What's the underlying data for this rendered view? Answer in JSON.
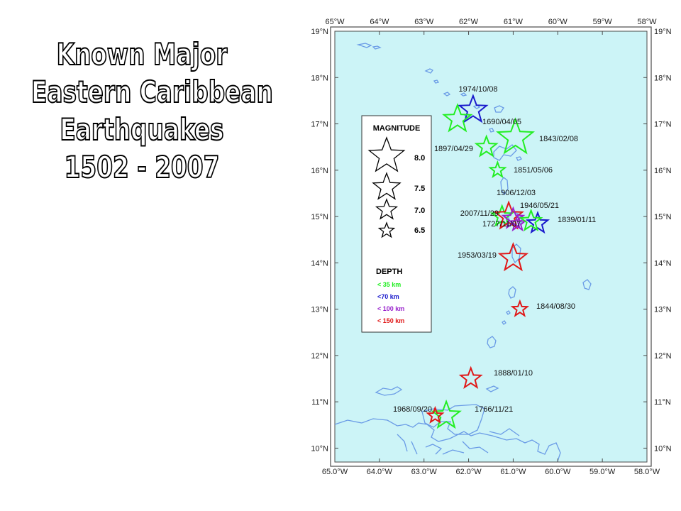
{
  "title": {
    "lines": [
      "Known Major",
      "Eastern Caribbean",
      "Earthquakes",
      "1502 - 2007"
    ]
  },
  "map": {
    "lon_range": [
      -65.0,
      -58.0
    ],
    "lat_range": [
      9.7,
      19.0
    ],
    "top_lon_labels": [
      "65°W",
      "64°W",
      "63°W",
      "62°W",
      "61°W",
      "60°W",
      "59°W",
      "58°W"
    ],
    "bottom_lon_labels": [
      "65.0°W",
      "64.0°W",
      "63.0°W",
      "62.0°W",
      "61.0°W",
      "60.0°W",
      "59.0°W",
      "58.0°W"
    ],
    "lat_labels": [
      "19°N",
      "18°N",
      "17°N",
      "16°N",
      "15°N",
      "14°N",
      "13°N",
      "12°N",
      "11°N",
      "10°N"
    ],
    "colors": {
      "ocean": "#ccf4f7",
      "coast": "#6a9be6",
      "frame": "#4a4a4a"
    }
  },
  "legend": {
    "magnitude_title": "MAGNITUDE",
    "magnitudes": [
      "8.0",
      "7.5",
      "7.0",
      "6.5"
    ],
    "depth_title": "DEPTH",
    "depths": [
      {
        "label": "< 35 km",
        "color": "#22ee22"
      },
      {
        "label": "<70 km",
        "color": "#1a1acc"
      },
      {
        "label": "< 100 km",
        "color": "#9922cc"
      },
      {
        "label": "< 150 km",
        "color": "#e01818"
      }
    ]
  },
  "earthquakes": [
    {
      "date": "1974/10/08",
      "lon": -61.9,
      "lat": 17.3,
      "magnitude": 7.5,
      "depth": "<70 km",
      "color": "#1a1acc"
    },
    {
      "date": "1690/04/05",
      "lon": -62.25,
      "lat": 17.1,
      "magnitude": 7.5,
      "depth": "< 35 km",
      "color": "#22ee22"
    },
    {
      "date": "1843/02/08",
      "lon": -60.95,
      "lat": 16.7,
      "magnitude": 8.0,
      "depth": "< 35 km",
      "color": "#22ee22"
    },
    {
      "date": "1897/04/29",
      "lon": -61.6,
      "lat": 16.5,
      "magnitude": 7.0,
      "depth": "< 35 km",
      "color": "#22ee22"
    },
    {
      "date": "1851/05/06",
      "lon": -61.35,
      "lat": 16.0,
      "magnitude": 6.5,
      "depth": "< 35 km",
      "color": "#22ee22"
    },
    {
      "date": "1906/12/03",
      "lon": -61.25,
      "lat": 15.0,
      "magnitude": 7.0,
      "depth": "< 35 km",
      "color": "#22ee22"
    },
    {
      "date": "2007/11/29",
      "lon": -61.1,
      "lat": 15.0,
      "magnitude": 7.5,
      "depth": "< 150 km",
      "color": "#e01818"
    },
    {
      "date": "1946/05/21",
      "lon": -61.0,
      "lat": 14.95,
      "magnitude": 7.0,
      "depth": "< 100 km",
      "color": "#9922cc"
    },
    {
      "date": "1727/11/07",
      "lon": -60.9,
      "lat": 14.85,
      "magnitude": 6.5,
      "depth": "< 100 km",
      "color": "#9922cc"
    },
    {
      "date": "1839/01/11",
      "lon": -60.45,
      "lat": 14.85,
      "magnitude": 7.0,
      "depth": "<70 km",
      "color": "#1a1acc"
    },
    {
      "date": "",
      "lon": -60.6,
      "lat": 14.9,
      "magnitude": 7.0,
      "depth": "< 35 km",
      "color": "#22ee22"
    },
    {
      "date": "1953/03/19",
      "lon": -61.0,
      "lat": 14.1,
      "magnitude": 7.5,
      "depth": "< 150 km",
      "color": "#e01818"
    },
    {
      "date": "1844/08/30",
      "lon": -60.85,
      "lat": 13.0,
      "magnitude": 6.5,
      "depth": "< 150 km",
      "color": "#e01818"
    },
    {
      "date": "1888/01/10",
      "lon": -61.95,
      "lat": 11.5,
      "magnitude": 7.0,
      "depth": "< 150 km",
      "color": "#e01818"
    },
    {
      "date": "1766/11/21",
      "lon": -62.5,
      "lat": 10.7,
      "magnitude": 7.5,
      "depth": "< 35 km",
      "color": "#22ee22"
    },
    {
      "date": "1968/09/20",
      "lon": -62.75,
      "lat": 10.7,
      "magnitude": 6.5,
      "depth": "< 150 km",
      "color": "#e01818"
    }
  ]
}
